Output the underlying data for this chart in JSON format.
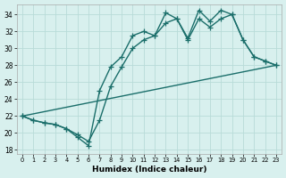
{
  "xlabel": "Humidex (Indice chaleur)",
  "background_color": "#d8f0ee",
  "grid_color": "#b8dbd8",
  "line_color": "#1a6e6a",
  "xlim": [
    -0.5,
    23.5
  ],
  "ylim": [
    17.5,
    35.2
  ],
  "yticks": [
    18,
    20,
    22,
    24,
    26,
    28,
    30,
    32,
    34
  ],
  "xticks": [
    0,
    1,
    2,
    3,
    4,
    5,
    6,
    7,
    8,
    9,
    10,
    11,
    12,
    13,
    14,
    15,
    16,
    17,
    18,
    19,
    20,
    21,
    22,
    23
  ],
  "series1_x": [
    0,
    1,
    2,
    3,
    4,
    5,
    6,
    7,
    8,
    9,
    10,
    11,
    12,
    13,
    14,
    15,
    16,
    17,
    18,
    19,
    20,
    21,
    22,
    23
  ],
  "series1_y": [
    22.0,
    21.5,
    21.2,
    21.0,
    20.5,
    19.5,
    18.5,
    25.0,
    27.8,
    29.0,
    31.5,
    32.0,
    31.5,
    34.2,
    33.5,
    31.2,
    34.5,
    33.2,
    34.5,
    34.0,
    31.0,
    29.0,
    28.5,
    28.0
  ],
  "series2_x": [
    0,
    1,
    2,
    3,
    4,
    5,
    6,
    7,
    8,
    9,
    10,
    11,
    12,
    13,
    14,
    15,
    16,
    17,
    18,
    19,
    20,
    21,
    22,
    23
  ],
  "series2_y": [
    22.0,
    21.5,
    21.2,
    21.0,
    20.5,
    19.8,
    19.0,
    21.5,
    25.5,
    27.8,
    30.0,
    31.0,
    31.5,
    33.0,
    33.5,
    31.0,
    33.5,
    32.5,
    33.5,
    34.0,
    31.0,
    29.0,
    28.5,
    28.0
  ],
  "series3_x": [
    0,
    23
  ],
  "series3_y": [
    22.0,
    28.0
  ],
  "linewidth": 1.0,
  "marker_size": 4
}
